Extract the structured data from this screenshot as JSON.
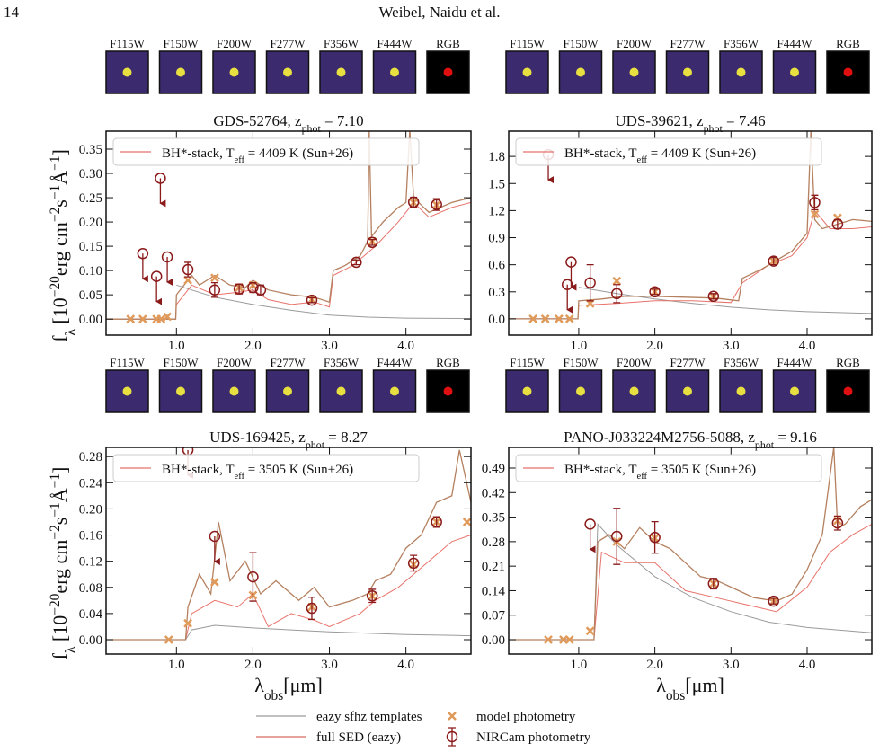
{
  "page_number": "14",
  "running_head": "Weibel, Naidu et al.",
  "figure_legend": [
    {
      "label": "eazy sfhz templates",
      "color": "#9a9a9a",
      "marker": "line"
    },
    {
      "label": "full SED (eazy)",
      "color": "#d46a5e",
      "marker": "line"
    },
    {
      "label": "model photometry",
      "color": "#e09a5a",
      "marker": "cross"
    },
    {
      "label": "NIRCam photometry",
      "color": "#8b1a1a",
      "marker": "circle"
    }
  ],
  "chart_data": [
    {
      "type": "line",
      "filters": [
        "F115W",
        "F150W",
        "F200W",
        "F277W",
        "F356W",
        "F444W",
        "RGB"
      ],
      "title": [
        {
          "text": "GDS-52764, z"
        },
        {
          "text": "phot",
          "shift": "sub"
        },
        {
          "text": " = 7.10"
        }
      ],
      "ylabel": [
        {
          "text": "f"
        },
        {
          "text": "λ",
          "shift": "sub"
        },
        {
          "text": " [10"
        },
        {
          "text": "−20",
          "shift": "super"
        },
        {
          "text": "erg cm"
        },
        {
          "text": "−2",
          "shift": "super"
        },
        {
          "text": "s"
        },
        {
          "text": "−1",
          "shift": "super"
        },
        {
          "text": "Å"
        },
        {
          "text": "−1",
          "shift": "super"
        },
        {
          "text": "]"
        }
      ],
      "xlim": [
        0.08,
        4.85
      ],
      "xticks": [
        {
          "value": 1,
          "label": "1.0"
        },
        {
          "value": 2,
          "label": "2.0"
        },
        {
          "value": 3,
          "label": "3.0"
        },
        {
          "value": 4,
          "label": "4.0"
        }
      ],
      "ylim": [
        -0.033,
        0.387
      ],
      "yticks": [
        {
          "value": 0,
          "label": "0.00"
        },
        0.05,
        {
          "value": 0.1,
          "label": "0.10"
        },
        0.15,
        {
          "value": 0.2,
          "label": "0.20"
        },
        0.25,
        {
          "value": 0.3,
          "label": "0.30"
        },
        0.35
      ],
      "templates": {
        "color": "#9a9a9a",
        "x": [
          1.0,
          1.2,
          1.5,
          2.0,
          2.5,
          3.0,
          3.5,
          4.0,
          4.85
        ],
        "values": [
          0.07,
          0.06,
          0.045,
          0.03,
          0.018,
          0.008,
          0.004,
          0.002,
          0.001
        ]
      },
      "sed": {
        "color": "#b5805f",
        "x": [
          0.08,
          0.99,
          1.0,
          1.2,
          1.3,
          1.5,
          1.7,
          1.9,
          2.0,
          2.2,
          2.5,
          2.8,
          3.0,
          3.05,
          3.2,
          3.4,
          3.5,
          3.52,
          3.55,
          3.7,
          3.9,
          4.0,
          4.05,
          4.1,
          4.3,
          4.6,
          4.85
        ],
        "values": [
          0,
          0,
          0.05,
          0.09,
          0.07,
          0.09,
          0.07,
          0.065,
          0.08,
          0.06,
          0.05,
          0.045,
          0.035,
          0.1,
          0.11,
          0.13,
          0.16,
          0.39,
          0.17,
          0.2,
          0.23,
          0.24,
          0.39,
          0.25,
          0.22,
          0.24,
          0.25
        ]
      },
      "bh_stack": {
        "color": "#e8726a",
        "name": [
          {
            "text": "BH*-stack, T"
          },
          {
            "text": "eff",
            "shift": "sub"
          },
          {
            "text": " = 4409 K (Sun+26)"
          }
        ],
        "x": [
          0.08,
          0.99,
          1.0,
          1.2,
          1.5,
          1.8,
          2.0,
          2.2,
          2.5,
          2.8,
          3.0,
          3.05,
          3.3,
          3.6,
          3.9,
          4.1,
          4.3,
          4.6,
          4.85
        ],
        "values": [
          0,
          0,
          0.03,
          0.07,
          0.05,
          0.055,
          0.06,
          0.04,
          0.03,
          0.035,
          0.025,
          0.09,
          0.11,
          0.15,
          0.2,
          0.24,
          0.21,
          0.23,
          0.24
        ]
      },
      "model_photometry": {
        "x": [
          0.4,
          0.56,
          0.74,
          0.8,
          0.88,
          1.15,
          1.5,
          1.82,
          2.0,
          2.77,
          3.56,
          4.1,
          4.4
        ],
        "values": [
          0,
          0,
          0,
          0,
          0.005,
          0.08,
          0.085,
          0.065,
          0.07,
          0.04,
          0.16,
          0.24,
          0.235
        ]
      },
      "photometry": {
        "x": [
          1.15,
          1.5,
          1.82,
          2.0,
          2.1,
          2.77,
          3.35,
          3.56,
          4.1,
          4.4
        ],
        "values": [
          0.102,
          0.06,
          0.062,
          0.065,
          0.06,
          0.039,
          0.117,
          0.158,
          0.241,
          0.236
        ],
        "errors": [
          0.015,
          0.015,
          0.01,
          0.01,
          0.01,
          0.005,
          0.005,
          0.006,
          0.01,
          0.012
        ]
      },
      "upper_limits": {
        "x": [
          0.56,
          0.74,
          0.79,
          0.88
        ],
        "values": [
          0.135,
          0.088,
          0.29,
          0.128
        ]
      }
    },
    {
      "type": "line",
      "filters": [
        "F115W",
        "F150W",
        "F200W",
        "F277W",
        "F356W",
        "F444W",
        "RGB"
      ],
      "title": [
        {
          "text": "UDS-39621, z"
        },
        {
          "text": "phot",
          "shift": "sub"
        },
        {
          "text": " = 7.46"
        }
      ],
      "xlim": [
        0.08,
        4.85
      ],
      "xticks": [
        {
          "value": 1,
          "label": "1.0"
        },
        {
          "value": 2,
          "label": "2.0"
        },
        {
          "value": 3,
          "label": "3.0"
        },
        {
          "value": 4,
          "label": "4.0"
        }
      ],
      "ylim": [
        -0.18,
        2.08
      ],
      "yticks": [
        {
          "value": 0,
          "label": "0.0"
        },
        0.3,
        0.6,
        0.9,
        1.2,
        1.5,
        1.8
      ],
      "templates": {
        "color": "#9a9a9a",
        "x": [
          1.0,
          1.5,
          2.0,
          2.5,
          3.0,
          3.5,
          4.0,
          4.85
        ],
        "values": [
          0.35,
          0.28,
          0.22,
          0.17,
          0.13,
          0.1,
          0.08,
          0.06
        ]
      },
      "sed": {
        "color": "#b5805f",
        "x": [
          0.08,
          0.99,
          1.0,
          1.3,
          1.6,
          2.0,
          2.4,
          2.8,
          3.1,
          3.15,
          3.4,
          3.6,
          3.8,
          4.0,
          4.05,
          4.1,
          4.2,
          4.4,
          4.6,
          4.85
        ],
        "values": [
          0,
          0,
          0.2,
          0.22,
          0.25,
          0.25,
          0.24,
          0.23,
          0.2,
          0.45,
          0.55,
          0.65,
          0.75,
          0.95,
          2.08,
          1.1,
          1.0,
          1.05,
          1.1,
          1.08
        ]
      },
      "bh_stack": {
        "color": "#e8726a",
        "name": [
          {
            "text": "BH*-stack, T"
          },
          {
            "text": "eff",
            "shift": "sub"
          },
          {
            "text": " = 4409 K (Sun+26)"
          }
        ],
        "x": [
          0.08,
          0.99,
          1.0,
          1.5,
          2.0,
          2.5,
          3.0,
          3.15,
          3.5,
          3.8,
          4.0,
          4.1,
          4.3,
          4.6,
          4.85
        ],
        "values": [
          0,
          0,
          0.15,
          0.17,
          0.2,
          0.2,
          0.18,
          0.4,
          0.6,
          0.7,
          0.9,
          1.2,
          1.0,
          1.0,
          1.02
        ]
      },
      "model_photometry": {
        "x": [
          0.4,
          0.56,
          0.74,
          0.88,
          1.15,
          1.5,
          2.0,
          2.77,
          3.56,
          4.1,
          4.4
        ],
        "values": [
          0,
          0,
          0,
          0,
          0.17,
          0.42,
          0.3,
          0.25,
          0.64,
          1.16,
          1.12
        ]
      },
      "photometry": {
        "x": [
          1.15,
          1.5,
          2.0,
          2.77,
          3.56,
          4.1,
          4.4
        ],
        "values": [
          0.4,
          0.28,
          0.3,
          0.25,
          0.64,
          1.29,
          1.05
        ],
        "errors": [
          0.2,
          0.1,
          0.03,
          0.03,
          0.04,
          0.08,
          0.05
        ]
      },
      "upper_limits": {
        "x": [
          0.6,
          0.85,
          0.9
        ],
        "values": [
          1.82,
          0.38,
          0.63
        ]
      }
    },
    {
      "type": "line",
      "filters": [
        "F115W",
        "F150W",
        "F200W",
        "F277W",
        "F356W",
        "F444W",
        "RGB"
      ],
      "title": [
        {
          "text": "UDS-169425, z"
        },
        {
          "text": "phot",
          "shift": "sub"
        },
        {
          "text": " = 8.27"
        }
      ],
      "ylabel": [
        {
          "text": "f"
        },
        {
          "text": "λ",
          "shift": "sub"
        },
        {
          "text": " [10"
        },
        {
          "text": "−20",
          "shift": "super"
        },
        {
          "text": "erg cm"
        },
        {
          "text": "−2",
          "shift": "super"
        },
        {
          "text": "s"
        },
        {
          "text": "−1",
          "shift": "super"
        },
        {
          "text": "Å"
        },
        {
          "text": "−1",
          "shift": "super"
        },
        {
          "text": "]"
        }
      ],
      "xlabel": [
        {
          "text": "λ"
        },
        {
          "text": "obs",
          "shift": "sub"
        },
        {
          "text": "[μm]"
        }
      ],
      "xlim": [
        0.08,
        4.85
      ],
      "xticks": [
        {
          "value": 1,
          "label": "1.0"
        },
        {
          "value": 2,
          "label": "2.0"
        },
        {
          "value": 3,
          "label": "3.0"
        },
        {
          "value": 4,
          "label": "4.0"
        }
      ],
      "ylim": [
        -0.022,
        0.294
      ],
      "yticks": [
        {
          "value": 0,
          "label": "0.00"
        },
        0.04,
        0.08,
        0.12,
        0.16,
        {
          "value": 0.2,
          "label": "0.20"
        },
        0.24,
        0.28
      ],
      "templates": {
        "color": "#9a9a9a",
        "x": [
          1.12,
          1.2,
          1.5,
          2.0,
          2.5,
          3.0,
          3.5,
          4.0,
          4.85
        ],
        "values": [
          0,
          0.015,
          0.022,
          0.018,
          0.015,
          0.012,
          0.01,
          0.008,
          0.006
        ]
      },
      "sed": {
        "color": "#b5805f",
        "x": [
          0.08,
          1.12,
          1.15,
          1.3,
          1.45,
          1.55,
          1.7,
          1.9,
          2.1,
          2.3,
          2.6,
          2.8,
          3.0,
          3.3,
          3.5,
          3.6,
          3.8,
          4.0,
          4.2,
          4.4,
          4.6,
          4.7,
          4.85
        ],
        "values": [
          0,
          0,
          0.05,
          0.1,
          0.07,
          0.18,
          0.09,
          0.12,
          0.07,
          0.09,
          0.06,
          0.08,
          0.05,
          0.06,
          0.07,
          0.09,
          0.1,
          0.14,
          0.16,
          0.21,
          0.22,
          0.29,
          0.21
        ]
      },
      "bh_stack": {
        "color": "#e8726a",
        "name": [
          {
            "text": "BH*-stack, T"
          },
          {
            "text": "eff",
            "shift": "sub"
          },
          {
            "text": " = 3505 K (Sun+26)"
          }
        ],
        "x": [
          0.08,
          1.12,
          1.2,
          1.5,
          1.8,
          2.0,
          2.2,
          2.5,
          2.8,
          3.0,
          3.4,
          3.6,
          3.9,
          4.1,
          4.4,
          4.6,
          4.85
        ],
        "values": [
          0,
          0,
          0.04,
          0.06,
          0.05,
          0.07,
          0.02,
          0.04,
          0.03,
          0.02,
          0.04,
          0.06,
          0.08,
          0.1,
          0.13,
          0.15,
          0.16
        ]
      },
      "model_photometry": {
        "x": [
          0.9,
          1.15,
          1.5,
          2.0,
          2.77,
          3.56,
          4.1,
          4.4,
          4.8
        ],
        "values": [
          0,
          0.025,
          0.088,
          0.068,
          0.05,
          0.067,
          0.115,
          0.18,
          0.18
        ]
      },
      "photometry": {
        "x": [
          2.0,
          2.77,
          3.56,
          4.1,
          4.4
        ],
        "values": [
          0.096,
          0.048,
          0.067,
          0.117,
          0.18
        ],
        "errors": [
          0.037,
          0.017,
          0.01,
          0.012,
          0.008
        ]
      },
      "upper_limits": {
        "x": [
          1.15,
          1.5
        ],
        "values": [
          0.29,
          0.158
        ]
      }
    },
    {
      "type": "line",
      "filters": [
        "F115W",
        "F150W",
        "F200W",
        "F277W",
        "F356W",
        "F444W",
        "RGB"
      ],
      "title": [
        {
          "text": "PANO-J033224M2756-5088, z"
        },
        {
          "text": "phot",
          "shift": "sub"
        },
        {
          "text": " = 9.16"
        }
      ],
      "xlabel": [
        {
          "text": "λ"
        },
        {
          "text": "obs",
          "shift": "sub"
        },
        {
          "text": "[μm]"
        }
      ],
      "xlim": [
        0.08,
        4.85
      ],
      "xticks": [
        {
          "value": 1,
          "label": "1.0"
        },
        {
          "value": 2,
          "label": "2.0"
        },
        {
          "value": 3,
          "label": "3.0"
        },
        {
          "value": 4,
          "label": "4.0"
        }
      ],
      "ylim": [
        -0.041,
        0.549
      ],
      "yticks": [
        {
          "value": 0,
          "label": "0.00"
        },
        0.07,
        0.14,
        0.21,
        0.28,
        0.35,
        0.42,
        0.49
      ],
      "templates": {
        "color": "#9a9a9a",
        "x": [
          1.2,
          1.25,
          1.5,
          2.0,
          2.5,
          3.0,
          3.5,
          4.0,
          4.85
        ],
        "values": [
          0,
          0.33,
          0.27,
          0.18,
          0.12,
          0.08,
          0.05,
          0.035,
          0.02
        ]
      },
      "sed": {
        "color": "#b5805f",
        "x": [
          0.08,
          1.2,
          1.25,
          1.4,
          1.6,
          1.8,
          2.0,
          2.2,
          2.4,
          2.6,
          2.8,
          3.0,
          3.3,
          3.6,
          3.8,
          4.0,
          4.2,
          4.35,
          4.4,
          4.5,
          4.7,
          4.85
        ],
        "values": [
          0,
          0,
          0.28,
          0.3,
          0.26,
          0.32,
          0.28,
          0.26,
          0.22,
          0.18,
          0.17,
          0.15,
          0.12,
          0.11,
          0.13,
          0.2,
          0.3,
          0.55,
          0.32,
          0.33,
          0.38,
          0.4
        ]
      },
      "bh_stack": {
        "color": "#e8726a",
        "name": [
          {
            "text": "BH*-stack, T"
          },
          {
            "text": "eff",
            "shift": "sub"
          },
          {
            "text": " = 3505 K (Sun+26)"
          }
        ],
        "x": [
          0.08,
          1.2,
          1.3,
          1.6,
          2.0,
          2.4,
          2.8,
          3.2,
          3.6,
          4.0,
          4.3,
          4.6,
          4.85
        ],
        "values": [
          0,
          0,
          0.25,
          0.22,
          0.22,
          0.14,
          0.12,
          0.1,
          0.08,
          0.15,
          0.25,
          0.3,
          0.33
        ]
      },
      "model_photometry": {
        "x": [
          0.6,
          0.8,
          0.88,
          1.15,
          1.5,
          2.0,
          2.77,
          3.56,
          4.4
        ],
        "values": [
          0,
          0,
          0,
          0.025,
          0.28,
          0.29,
          0.16,
          0.11,
          0.34
        ]
      },
      "photometry": {
        "x": [
          1.5,
          2.0,
          2.77,
          3.56,
          4.4
        ],
        "values": [
          0.295,
          0.292,
          0.16,
          0.11,
          0.333
        ],
        "errors": [
          0.08,
          0.045,
          0.015,
          0.008,
          0.02
        ]
      },
      "upper_limits": {
        "x": [
          1.15
        ],
        "values": [
          0.33
        ]
      }
    }
  ]
}
